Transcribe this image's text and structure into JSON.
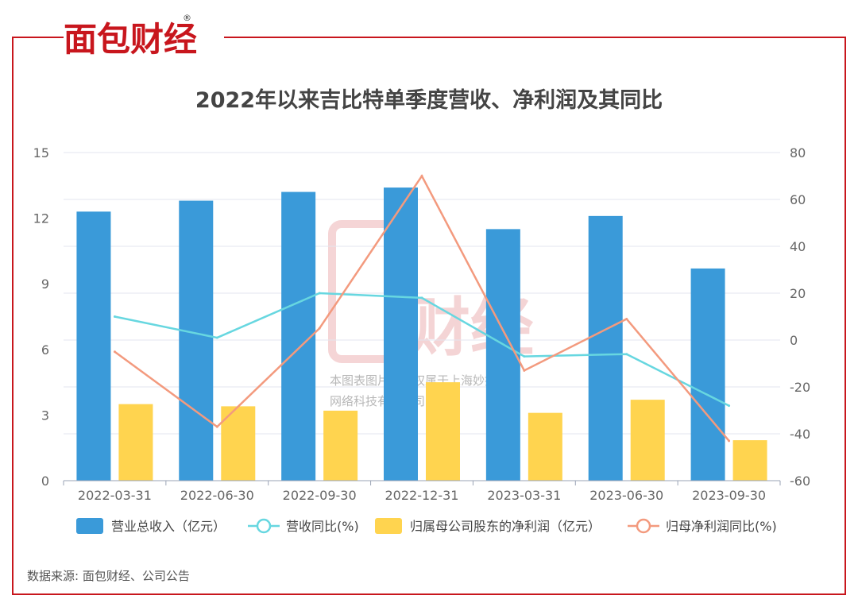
{
  "brand": {
    "name": "面包财经",
    "registered_mark": "®",
    "watermark_line1": "本图表图片著作权属于上海妙探",
    "watermark_line2": "网络科技有限公司"
  },
  "source": "数据来源: 面包财经、公司公告",
  "colors": {
    "frame": "#c8161d",
    "revenue": "#3a9ad9",
    "revenue_yoy": "#67d7e0",
    "net_profit": "#ffd44f",
    "net_profit_yoy": "#f39a7e",
    "axis_text": "#666666",
    "grid": "#e3e6ef",
    "title": "#444444"
  },
  "chart_data": {
    "type": "bar",
    "title": "2022年以来吉比特单季度营收、净利润及其同比",
    "categories": [
      "2022-03-31",
      "2022-06-30",
      "2022-09-30",
      "2022-12-31",
      "2023-03-31",
      "2023-06-30",
      "2023-09-30"
    ],
    "y_left": {
      "min": 0,
      "max": 15,
      "ticks": [
        0,
        3,
        6,
        9,
        12,
        15
      ]
    },
    "y_right": {
      "min": -60,
      "max": 80,
      "ticks": [
        -60,
        -40,
        -20,
        0,
        20,
        40,
        60,
        80
      ]
    },
    "series": [
      {
        "name": "营业总收入（亿元）",
        "type": "bar",
        "axis": "left",
        "color": "#3a9ad9",
        "values": [
          12.3,
          12.8,
          13.2,
          13.4,
          11.5,
          12.1,
          9.7
        ]
      },
      {
        "name": "营收同比(%)",
        "type": "line",
        "axis": "right",
        "color": "#67d7e0",
        "values": [
          10,
          1,
          20,
          18,
          -7,
          -6,
          -28
        ]
      },
      {
        "name": "归属母公司股东的净利润（亿元）",
        "type": "bar",
        "axis": "left",
        "color": "#ffd44f",
        "values": [
          3.5,
          3.4,
          3.2,
          4.5,
          3.1,
          3.7,
          1.85
        ]
      },
      {
        "name": "归母净利润同比(%)",
        "type": "line",
        "axis": "right",
        "color": "#f39a7e",
        "values": [
          -5,
          -37,
          5,
          70,
          -13,
          9,
          -43
        ]
      }
    ],
    "legend_position": "bottom"
  }
}
